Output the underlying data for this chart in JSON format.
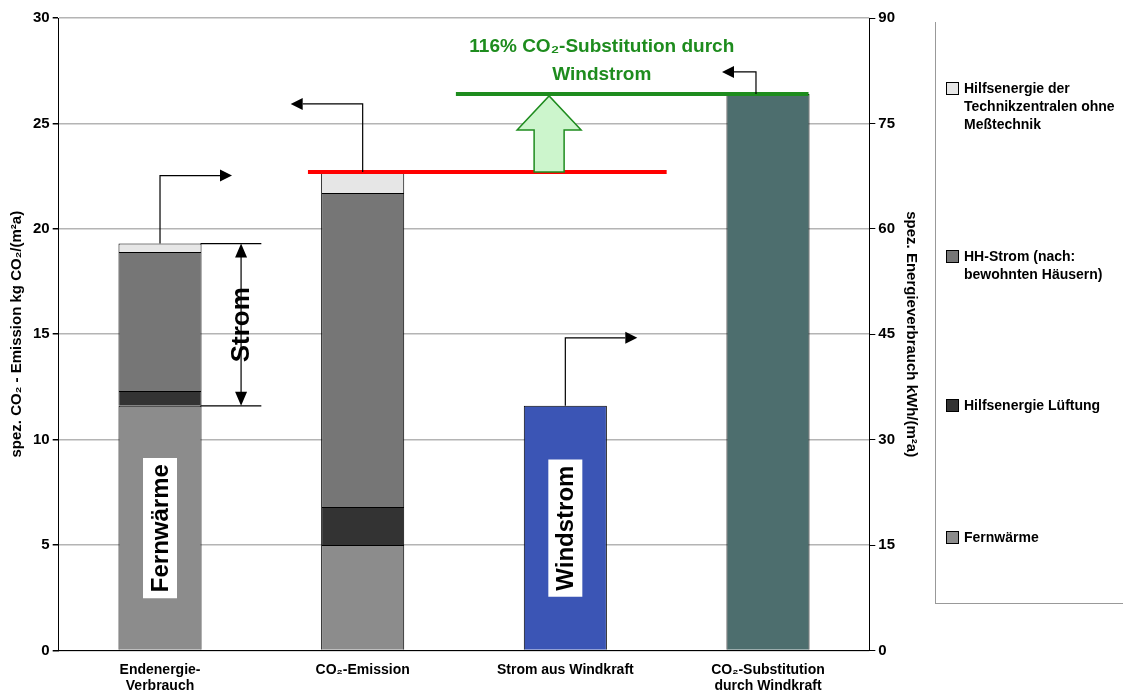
{
  "chart_data": {
    "type": "bar",
    "stacked": true,
    "categories": [
      "Endenergie-Verbrauch",
      "CO₂-Emission",
      "Strom aus Windkraft",
      "CO₂-Substitution durch Windkraft"
    ],
    "series": [
      {
        "name": "Fernwärme",
        "color": "#8c8c8c",
        "values": [
          11.6,
          5.0,
          null,
          null
        ]
      },
      {
        "name": "Hilfsenergie Lüftung",
        "color": "#333333",
        "values": [
          0.7,
          1.8,
          null,
          null
        ]
      },
      {
        "name": "HH-Strom (nach: bewohnten Häusern)",
        "color": "#767676",
        "values": [
          6.6,
          14.9,
          null,
          null
        ]
      },
      {
        "name": "Hilfsenergie der Technikzentralen ohne Meßtechnik",
        "color": "#e6e6e6",
        "values": [
          0.4,
          1.0,
          null,
          null
        ]
      },
      {
        "color": "#3b55b5",
        "values": [
          null,
          null,
          11.6,
          null
        ]
      },
      {
        "color": "#4d6e6e",
        "values": [
          null,
          null,
          null,
          26.4
        ]
      }
    ],
    "ylabel": "spez. CO₂ - Emission kg CO₂/(m²a)",
    "y2label": "spez. Energieverbrauch kWh/(m²a)",
    "ylim": [
      0,
      30
    ],
    "yticks": [
      0,
      5,
      10,
      15,
      20,
      25,
      30
    ],
    "y2lim": [
      0,
      90
    ],
    "y2ticks": [
      0,
      15,
      30,
      45,
      60,
      75,
      90
    ],
    "grid": "y",
    "legend": "right",
    "ref_lines": [
      {
        "axis": "y",
        "value": 22.7,
        "color": "#ff0000"
      },
      {
        "axis": "y",
        "value": 26.4,
        "color": "#1e8c1e",
        "label": "116% CO₂-Substitution durch Windstrom"
      }
    ],
    "annotations": [
      "Strom",
      "Fernwärme",
      "Windstrom"
    ]
  }
}
